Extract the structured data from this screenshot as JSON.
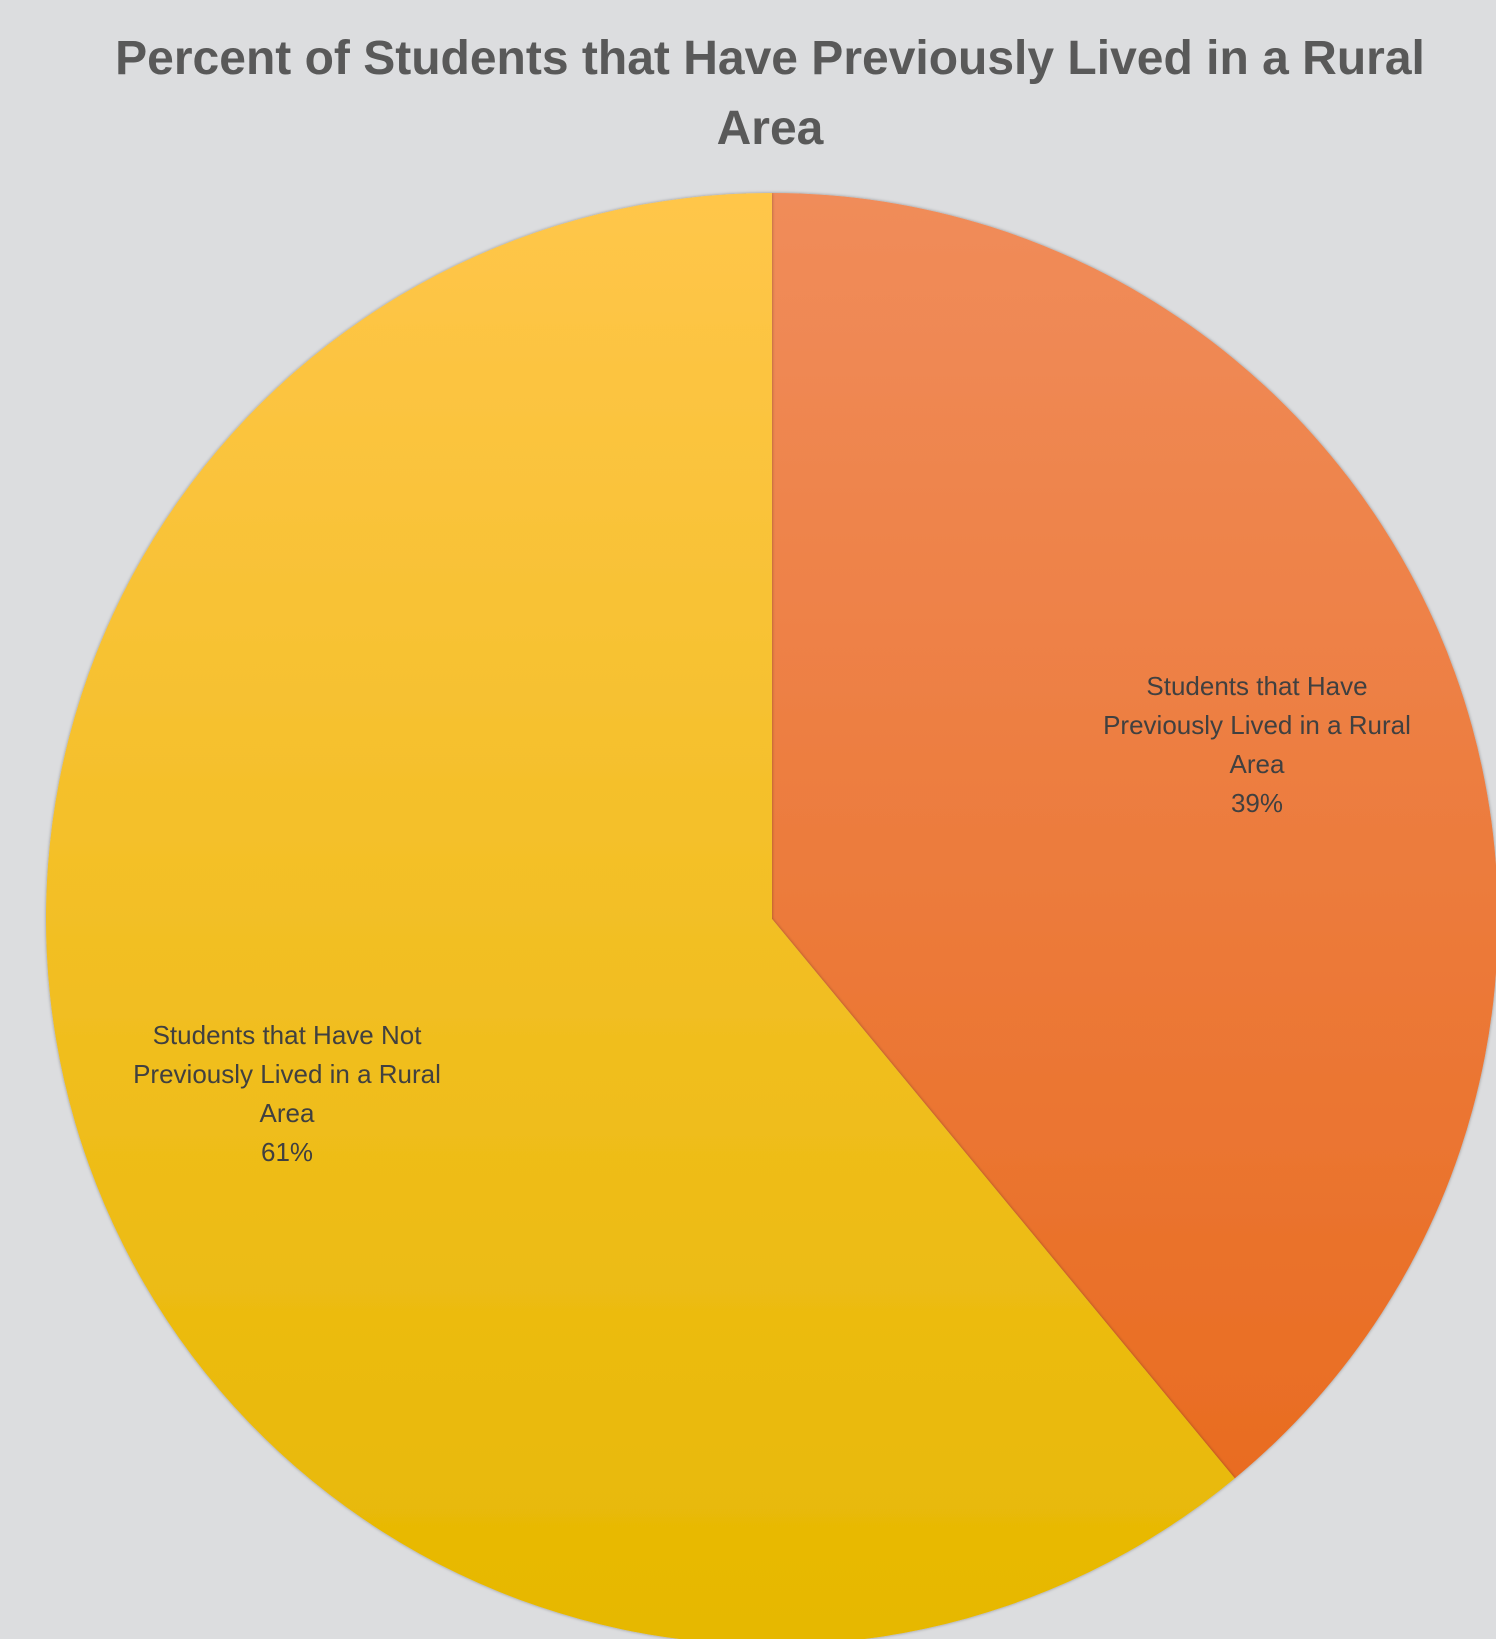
{
  "chart_data": {
    "type": "pie",
    "title_lines": [
      "Percent of Students that Have Previously Lived in a Rural",
      "Area"
    ],
    "categories": [
      "Students that Have Previously Lived in a Rural Area",
      "Students that Have Not Previously Lived in a Rural Area"
    ],
    "values": [
      39,
      61
    ],
    "value_labels": [
      "39%",
      "61%"
    ],
    "label_lines": [
      [
        "Students that Have",
        "Previously Lived in a Rural",
        "Area",
        "39%"
      ],
      [
        "Students that Have Not",
        "Previously Lived in a Rural",
        "Area",
        "61%"
      ]
    ],
    "colors": {
      "slice_1_top": "#F08C5A",
      "slice_1_bottom": "#E8681A",
      "slice_2_top": "#FFC64A",
      "slice_2_bottom": "#E6B800",
      "background": "#DCDDDF",
      "title": "#595959",
      "label": "#404040"
    }
  }
}
